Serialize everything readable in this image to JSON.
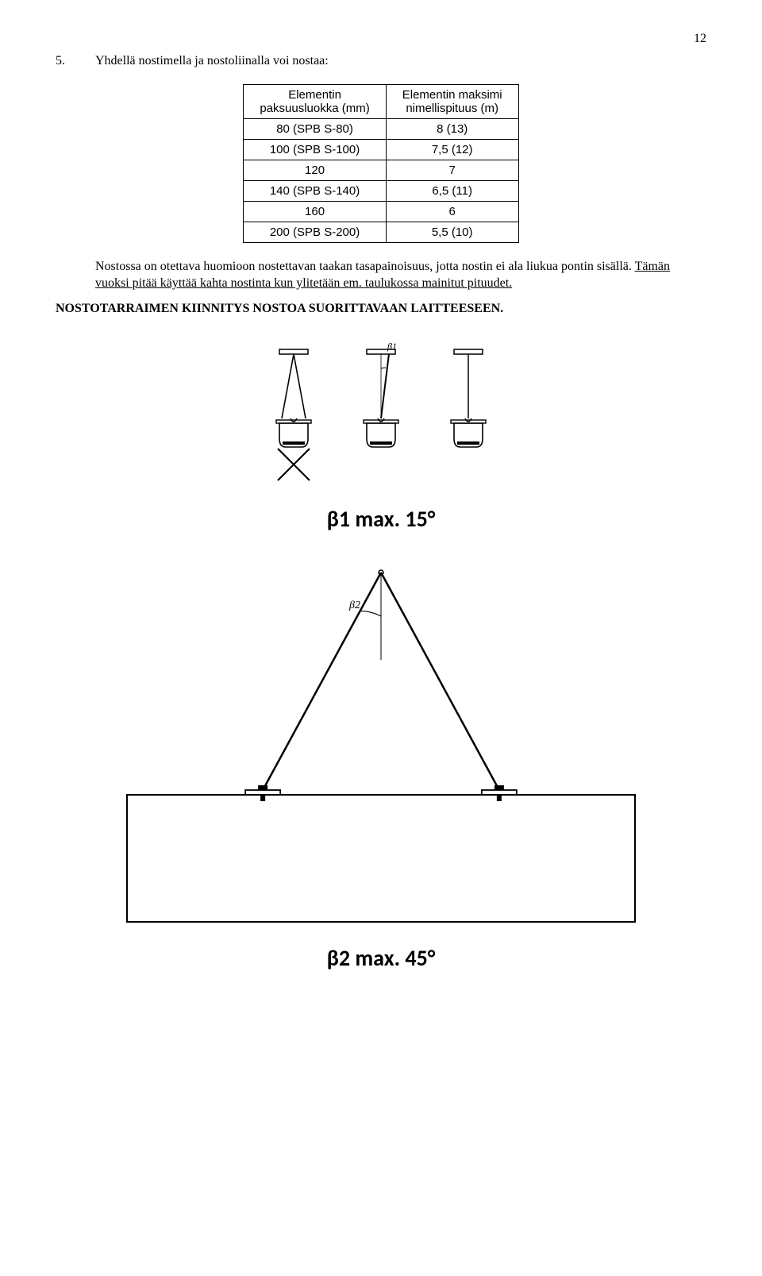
{
  "page": {
    "number": "12"
  },
  "section": {
    "number": "5.",
    "title": "Yhdellä nostimella ja nostoliinalla voi nostaa:"
  },
  "table": {
    "header_left": "Elementin\npaksuusluokka (mm)",
    "header_right": "Elementin maksimi\nnimellispituus (m)",
    "rows": [
      {
        "c1": "80 (SPB S-80)",
        "c2": "8 (13)"
      },
      {
        "c1": "100 (SPB S-100)",
        "c2": "7,5 (12)"
      },
      {
        "c1": "120",
        "c2": "7"
      },
      {
        "c1": "140 (SPB S-140)",
        "c2": "6,5 (11)"
      },
      {
        "c1": "160",
        "c2": "6"
      },
      {
        "c1": "200 (SPB S-200)",
        "c2": "5,5 (10)"
      }
    ]
  },
  "paragraph": {
    "plain1": "Nostossa on otettava huomioon nostettavan taakan tasapainoisuus, jotta nostin ei ala liukua pontin sisällä. ",
    "under": "Tämän vuoksi pitää käyttää kahta nostinta kun ylitetään em. taulukossa mainitut pituudet."
  },
  "bold_heading": "NOSTOTARRAIMEN KIINNITYS NOSTOA SUORITTAVAAN LAITTEESEEN.",
  "diagram1": {
    "beta1_label": "β1",
    "caption": "β1 max. 15°",
    "rope_angle_deg": 7,
    "stroke": "#000000",
    "fill_bg": "#ffffff"
  },
  "diagram2": {
    "beta2_label": "β2",
    "caption": "β2 max. 45°",
    "leg_half_angle_deg": 28,
    "stroke": "#000000",
    "fill_bg": "#ffffff"
  }
}
